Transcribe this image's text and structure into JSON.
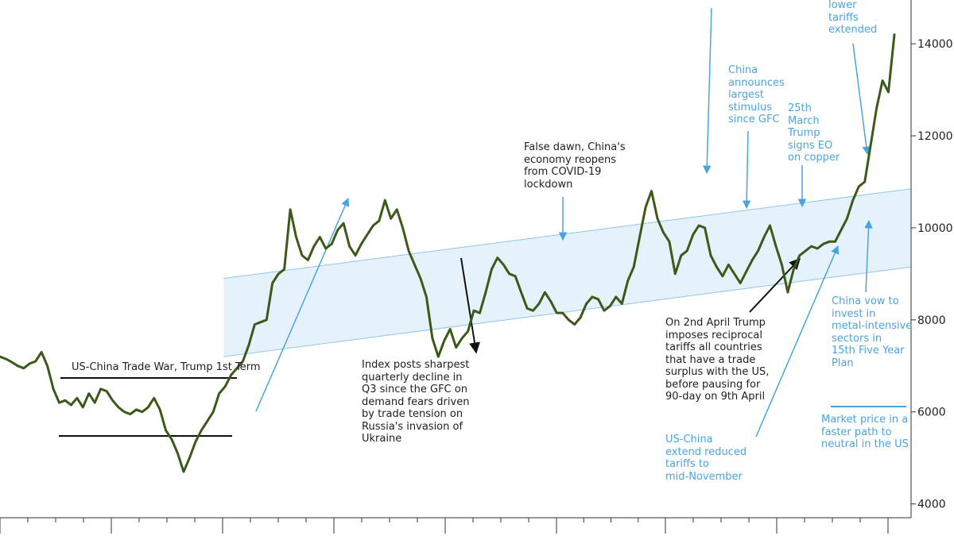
{
  "chart_data": {
    "type": "line",
    "title": "",
    "xlabel": "",
    "ylabel": "",
    "ylim": [
      3700,
      14900
    ],
    "y_ticks": [
      4000,
      6000,
      8000,
      10000,
      12000,
      14000
    ],
    "y_tick_labels": [
      "4000",
      "6000",
      "8000",
      "10000",
      "12000",
      "14000"
    ],
    "x_period_count": 9,
    "grid": false,
    "legend": "none",
    "line_color": "#3b5a1a",
    "accent_color": "#4aa3df",
    "series": [
      {
        "values": [
          7200,
          7150,
          7080,
          7000,
          6950,
          7050,
          7100,
          7300,
          7000,
          6500,
          6200,
          6250,
          6150,
          6300,
          6100,
          6400,
          6200,
          6500,
          6450,
          6250,
          6100,
          6000,
          5950,
          6050,
          6000,
          6100,
          6300,
          6050,
          5600,
          5400,
          5100,
          4700,
          5000,
          5350,
          5600,
          5800,
          6000,
          6400,
          6550,
          6800,
          6950,
          7100,
          7450,
          7900,
          7950,
          8000,
          8800,
          9000,
          9100,
          10400,
          9800,
          9400,
          9300,
          9600,
          9800,
          9550,
          9650,
          9950,
          10100,
          9600,
          9400,
          9650,
          9850,
          10050,
          10150,
          10600,
          10200,
          10400,
          10000,
          9500,
          9200,
          8900,
          8500,
          7600,
          7200,
          7550,
          7800,
          7400,
          7600,
          7750,
          8200,
          8150,
          8600,
          9100,
          9350,
          9200,
          9000,
          8950,
          8600,
          8250,
          8200,
          8350,
          8600,
          8400,
          8150,
          8150,
          8000,
          7900,
          8050,
          8350,
          8500,
          8450,
          8200,
          8300,
          8500,
          8350,
          8850,
          9150,
          9800,
          10450,
          10800,
          10200,
          9900,
          9700,
          9000,
          9400,
          9500,
          9850,
          10050,
          10000,
          9400,
          9150,
          8950,
          9200,
          9000,
          8800,
          9050,
          9300,
          9500,
          9800,
          10050,
          9600,
          9200,
          8600,
          9100,
          9400,
          9500,
          9600,
          9550,
          9650,
          9700,
          9700,
          9950,
          10200,
          10600,
          10900,
          11000,
          11800,
          12600,
          13200,
          12950,
          14200
        ]
      }
    ],
    "channel": {
      "upper": [
        [
          0.25,
          8900
        ],
        [
          1,
          10850
        ]
      ],
      "lower": [
        [
          0.25,
          7200
        ],
        [
          1,
          9150
        ]
      ]
    }
  },
  "annotations": {
    "trade_war": "US-China Trade War, Trump 1st Term",
    "q3_decline": "Index posts sharpest\nquarterly decline in\nQ3 since the GFC on\ndemand fears driven\nby trade tension on\nRussia's invasion of\nUkraine",
    "false_dawn": "False dawn, China's\neconomy reopens\nfrom COVID-19\nlockdown",
    "april_tariffs": "On 2nd April Trump\nimposes reciprocal\ntariffs all countries\nthat have a trade\nsurplus with the US,\nbefore pausing for\n90-day on 9th April",
    "stimulus": "China\nannounces\nlargest\nstimulus\nsince GFC",
    "copper_eo": "25th\nMarch\nTrump\nsigns EO\non copper",
    "tariffs_extended": "lower\ntariffs\nextended",
    "mid_november": "US-China\nextend reduced\ntariffs to\nmid-November",
    "metal_intensive": "China vow to\ninvest in\nmetal-intensive\n sectors in\n15th Five Year\nPlan",
    "faster_path": "Market price in a\nfaster path to\nneutral in the US"
  }
}
